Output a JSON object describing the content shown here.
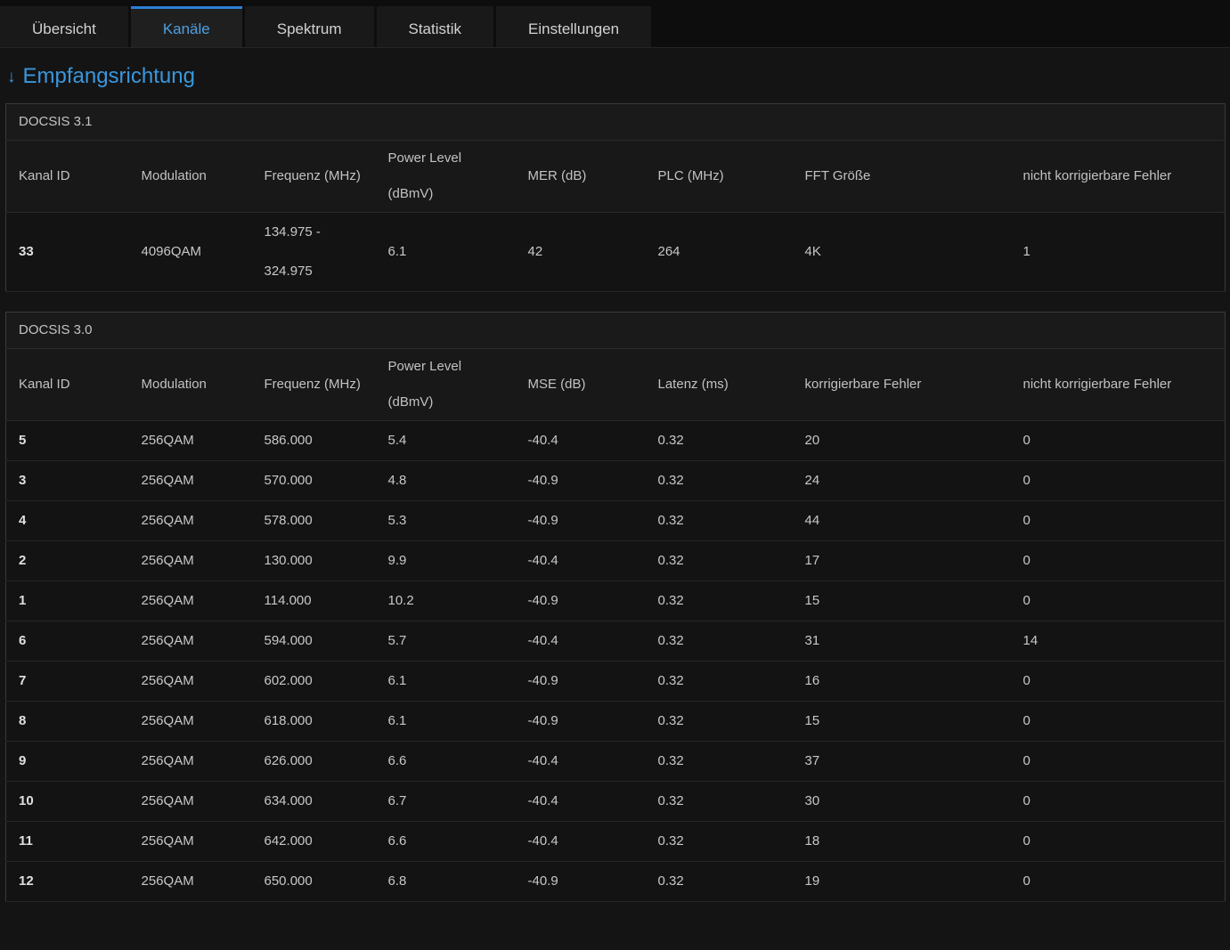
{
  "tabs": [
    {
      "label": "Übersicht",
      "active": false
    },
    {
      "label": "Kanäle",
      "active": true
    },
    {
      "label": "Spektrum",
      "active": false
    },
    {
      "label": "Statistik",
      "active": false
    },
    {
      "label": "Einstellungen",
      "active": false
    }
  ],
  "section": {
    "title": "Empfangsrichtung",
    "collapse_icon": "down-arrow",
    "arrow_glyph": "↓"
  },
  "docsis31": {
    "caption": "DOCSIS 3.1",
    "headers": [
      "Kanal ID",
      "Modulation",
      "Frequenz (MHz)",
      "Power Level (dBmV)",
      "MER (dB)",
      "PLC (MHz)",
      "FFT Größe",
      "nicht korrigierbare Fehler"
    ],
    "rows": [
      [
        "33",
        "4096QAM",
        "134.975 - 324.975",
        "6.1",
        "42",
        "264",
        "4K",
        "1"
      ]
    ]
  },
  "docsis30": {
    "caption": "DOCSIS 3.0",
    "headers": [
      "Kanal ID",
      "Modulation",
      "Frequenz (MHz)",
      "Power Level (dBmV)",
      "MSE (dB)",
      "Latenz (ms)",
      "korrigierbare Fehler",
      "nicht korrigierbare Fehler"
    ],
    "rows": [
      [
        "5",
        "256QAM",
        "586.000",
        "5.4",
        "-40.4",
        "0.32",
        "20",
        "0"
      ],
      [
        "3",
        "256QAM",
        "570.000",
        "4.8",
        "-40.9",
        "0.32",
        "24",
        "0"
      ],
      [
        "4",
        "256QAM",
        "578.000",
        "5.3",
        "-40.9",
        "0.32",
        "44",
        "0"
      ],
      [
        "2",
        "256QAM",
        "130.000",
        "9.9",
        "-40.4",
        "0.32",
        "17",
        "0"
      ],
      [
        "1",
        "256QAM",
        "114.000",
        "10.2",
        "-40.9",
        "0.32",
        "15",
        "0"
      ],
      [
        "6",
        "256QAM",
        "594.000",
        "5.7",
        "-40.4",
        "0.32",
        "31",
        "14"
      ],
      [
        "7",
        "256QAM",
        "602.000",
        "6.1",
        "-40.9",
        "0.32",
        "16",
        "0"
      ],
      [
        "8",
        "256QAM",
        "618.000",
        "6.1",
        "-40.9",
        "0.32",
        "15",
        "0"
      ],
      [
        "9",
        "256QAM",
        "626.000",
        "6.6",
        "-40.4",
        "0.32",
        "37",
        "0"
      ],
      [
        "10",
        "256QAM",
        "634.000",
        "6.7",
        "-40.4",
        "0.32",
        "30",
        "0"
      ],
      [
        "11",
        "256QAM",
        "642.000",
        "6.6",
        "-40.4",
        "0.32",
        "18",
        "0"
      ],
      [
        "12",
        "256QAM",
        "650.000",
        "6.8",
        "-40.9",
        "0.32",
        "19",
        "0"
      ]
    ]
  },
  "colors": {
    "accent_blue": "#3a97dd",
    "active_tab_border": "#2b7fd4",
    "page_background": "#141414",
    "table_background": "#151515"
  }
}
